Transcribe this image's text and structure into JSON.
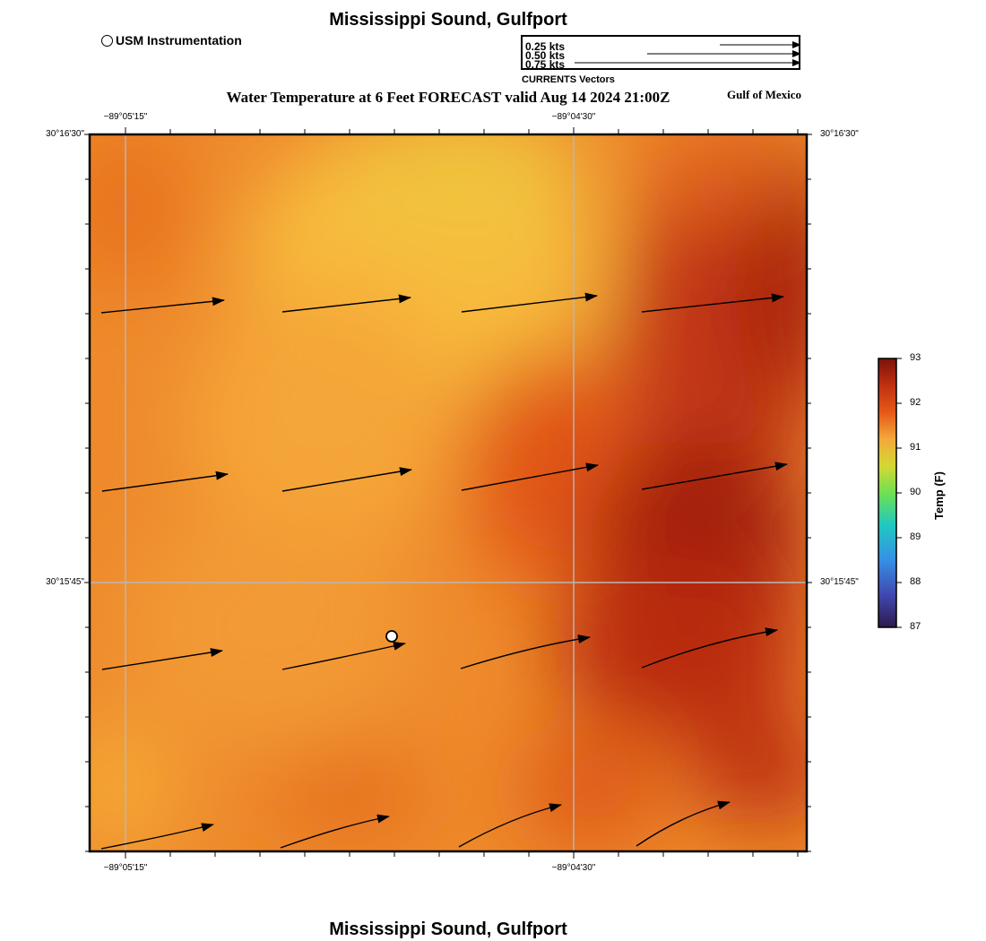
{
  "title": "Mississippi Sound, Gulfport",
  "subtitle": "Water Temperature at 6 Feet FORECAST valid Aug 14 2024 21:00Z",
  "region_label": "Gulf of Mexico",
  "station_legend": "USM Instrumentation",
  "vector_legend": {
    "caption": "CURRENTS Vectors",
    "entries": [
      "0.25 kts",
      "0.50 kts",
      "0.75 kts"
    ]
  },
  "bottom_title": "Mississippi Sound, Gulfport",
  "axes": {
    "lon_ticks": [
      "−89°05'15\"",
      "−89°04'30\""
    ],
    "lat_ticks": [
      "30°16'30\"",
      "30°15'45\""
    ]
  },
  "colorbar": {
    "label": "Temp (F)",
    "ticks": [
      "93",
      "92",
      "91",
      "90",
      "89",
      "88",
      "87"
    ],
    "min": 87,
    "max": 93
  },
  "colors": {
    "warm_light": "#f5b941",
    "warm_mid": "#ee8228",
    "warm_dark": "#9c1a0a",
    "station_marker": "#ffffff"
  }
}
